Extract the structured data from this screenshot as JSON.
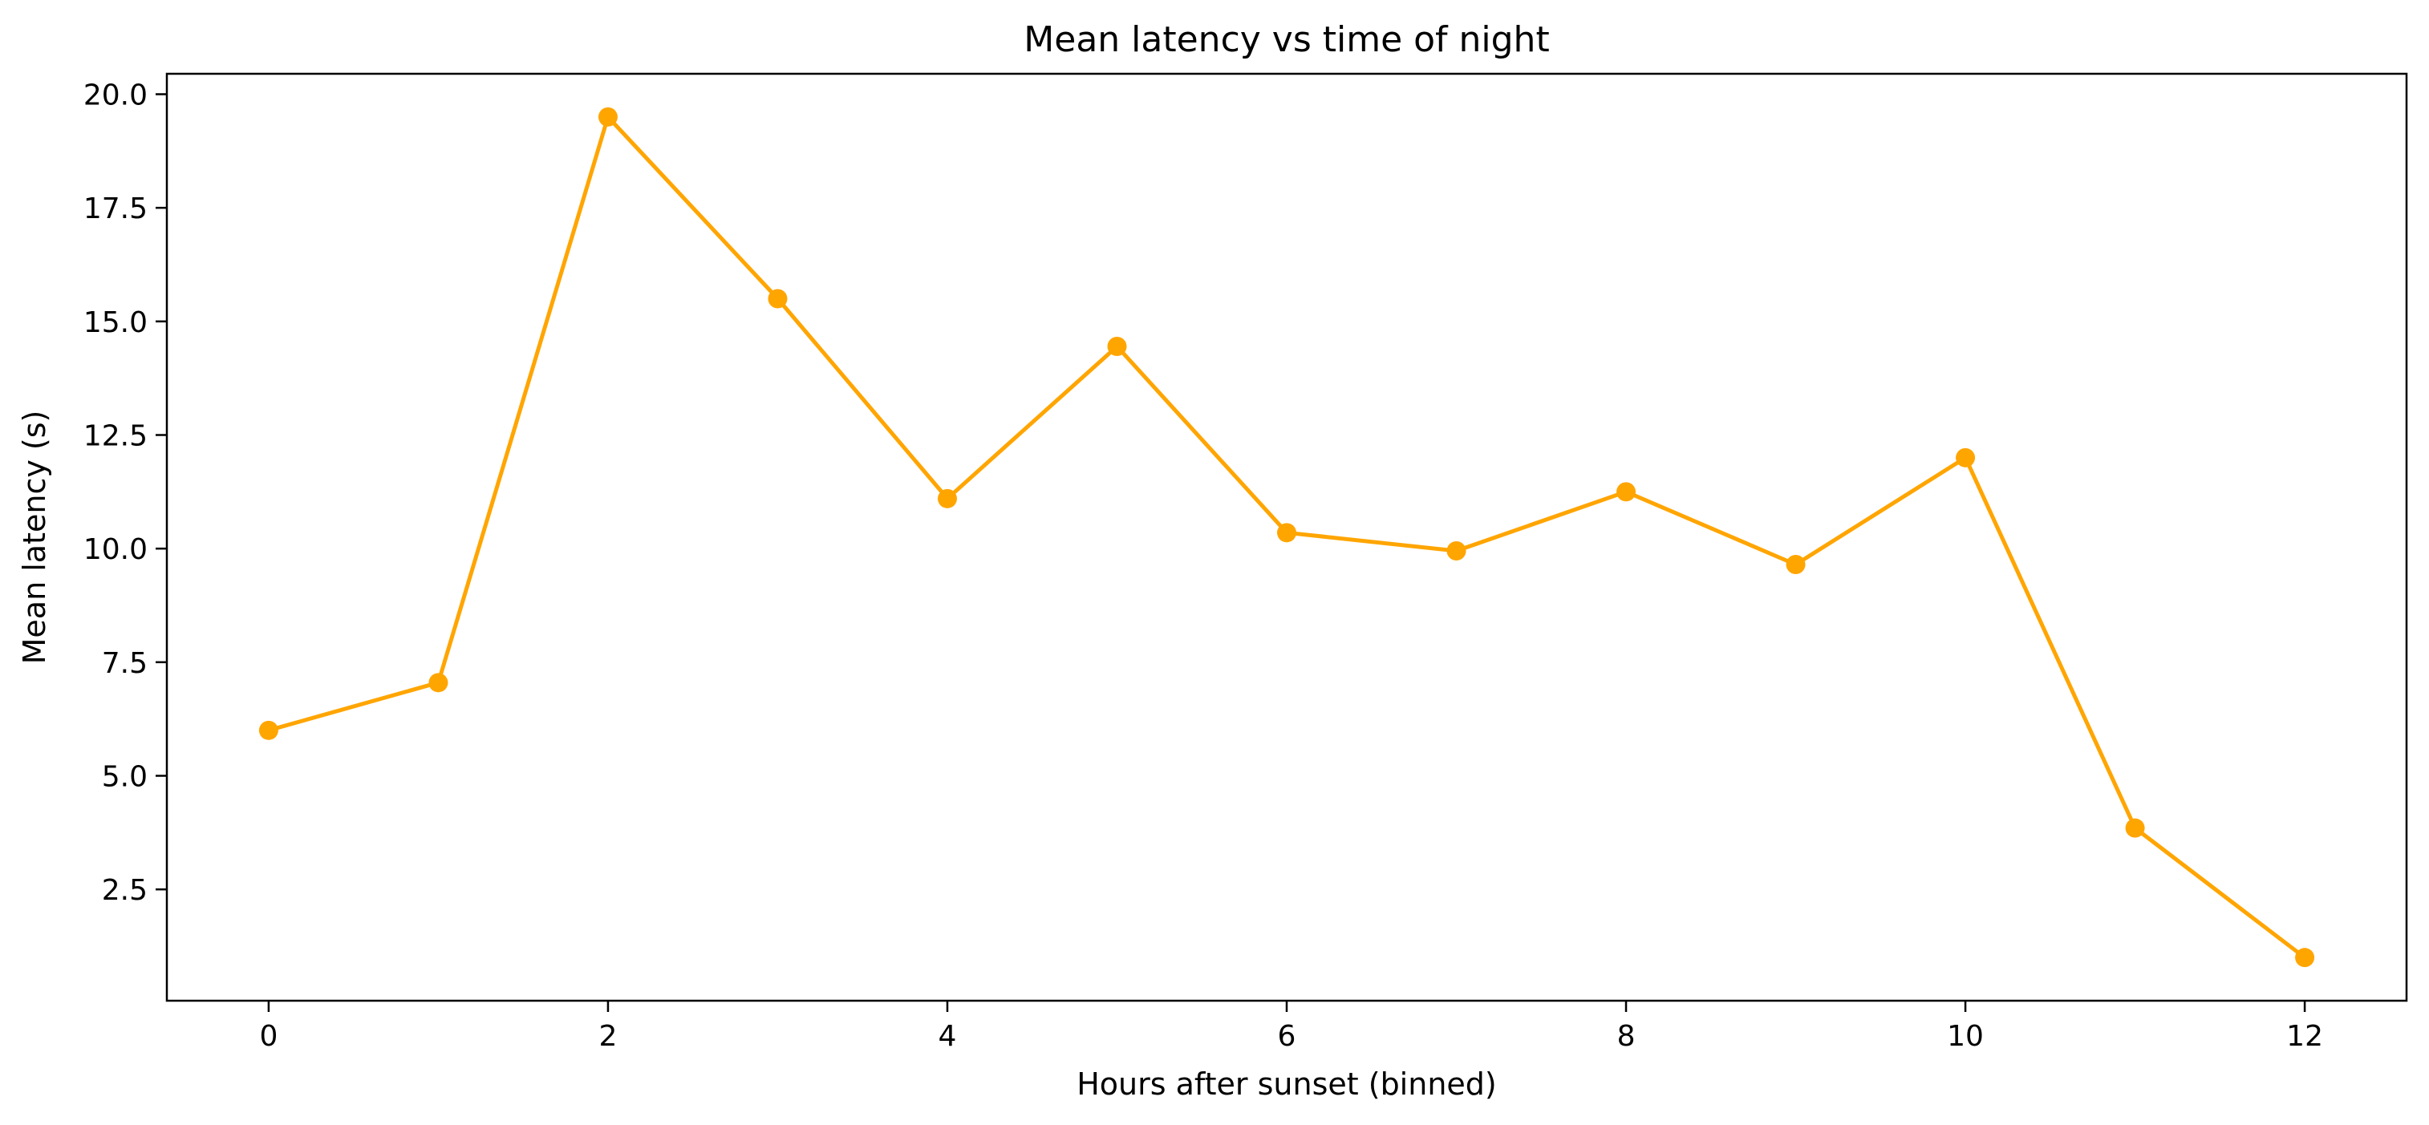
{
  "chart_data": {
    "type": "line",
    "title": "Mean latency vs time of night",
    "xlabel": "Hours after sunset (binned)",
    "ylabel": "Mean latency (s)",
    "xlim": [
      -0.6,
      12.6
    ],
    "ylim": [
      0.05,
      20.45
    ],
    "x_ticks": [
      0,
      2,
      4,
      6,
      8,
      10,
      12
    ],
    "x_tick_labels": [
      "0",
      "2",
      "4",
      "6",
      "8",
      "10",
      "12"
    ],
    "y_ticks": [
      2.5,
      5.0,
      7.5,
      10.0,
      12.5,
      15.0,
      17.5,
      20.0
    ],
    "y_tick_labels": [
      "2.5",
      "5.0",
      "7.5",
      "10.0",
      "12.5",
      "15.0",
      "17.5",
      "20.0"
    ],
    "grid": false,
    "series": [
      {
        "x": [
          0,
          1,
          2,
          3,
          4,
          5,
          6,
          7,
          8,
          9,
          10,
          11,
          12
        ],
        "values": [
          6.0,
          7.05,
          19.5,
          15.5,
          11.1,
          14.45,
          10.35,
          9.95,
          11.25,
          9.65,
          12.0,
          3.85,
          1.0
        ],
        "color": "#FFA500",
        "marker": "circle"
      }
    ]
  }
}
